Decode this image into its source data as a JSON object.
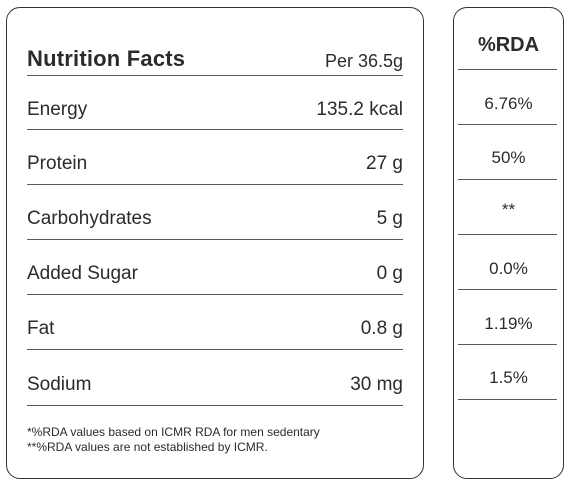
{
  "facts": {
    "title": "Nutrition Facts",
    "per": "Per 36.5g",
    "rows": [
      {
        "label": "Energy",
        "value": "135.2 kcal"
      },
      {
        "label": "Protein",
        "value": "27 g"
      },
      {
        "label": "Carbohydrates",
        "value": "5 g"
      },
      {
        "label": "Added Sugar",
        "value": "0 g"
      },
      {
        "label": "Fat",
        "value": "0.8 g"
      },
      {
        "label": "Sodium",
        "value": "30 mg"
      }
    ],
    "footnotes": [
      "*%RDA values based on ICMR RDA for men sedentary",
      "**%RDA values are not established by ICMR."
    ]
  },
  "rda": {
    "title": "%RDA",
    "values": [
      "6.76%",
      "50%",
      "**",
      "0.0%",
      "1.19%",
      "1.5%"
    ]
  }
}
